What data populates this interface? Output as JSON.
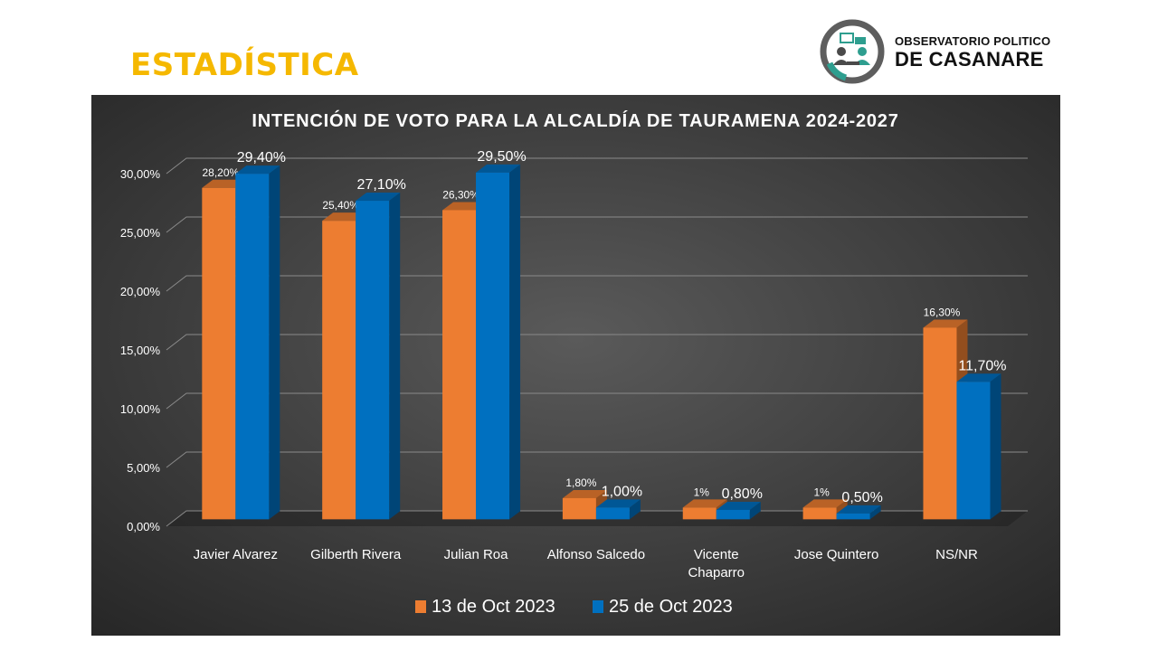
{
  "page": {
    "heading": "ESTADÍSTICA"
  },
  "logo": {
    "line1": "OBSERVATORIO POLITICO",
    "line2": "DE CASANARE",
    "icon": "people-meeting-icon",
    "colors": {
      "ring": "#5a5a5a",
      "accent": "#2e9e8f"
    }
  },
  "chart_data": {
    "type": "bar",
    "title": "INTENCIÓN DE VOTO PARA LA ALCALDÍA DE TAURAMENA 2024-2027",
    "categories": [
      [
        "Javier Alvarez"
      ],
      [
        "Gilberth Rivera"
      ],
      [
        "Julian Roa"
      ],
      [
        "Alfonso Salcedo"
      ],
      [
        "Vicente",
        "Chaparro"
      ],
      [
        "Jose Quintero"
      ],
      [
        "NS/NR"
      ]
    ],
    "series": [
      {
        "name": "13 de Oct 2023",
        "color": "#ed7d31",
        "values": [
          28.2,
          25.4,
          26.3,
          1.8,
          1.0,
          1.0,
          16.3
        ],
        "labels": [
          "28,20%",
          "25,40%",
          "26,30%",
          "1,80%",
          "1%",
          "1%",
          "16,30%"
        ]
      },
      {
        "name": "25 de Oct 2023",
        "color": "#0070c0",
        "values": [
          29.4,
          27.1,
          29.5,
          1.0,
          0.8,
          0.5,
          11.7
        ],
        "labels": [
          "29,40%",
          "27,10%",
          "29,50%",
          "1,00%",
          "0,80%",
          "0,50%",
          "11,70%"
        ]
      }
    ],
    "yticks": [
      "0,00%",
      "5,00%",
      "10,00%",
      "15,00%",
      "20,00%",
      "25,00%",
      "30,00%"
    ],
    "ylim": [
      0,
      30
    ],
    "grid": true,
    "legend_position": "bottom",
    "background": "#3a3a3a"
  }
}
